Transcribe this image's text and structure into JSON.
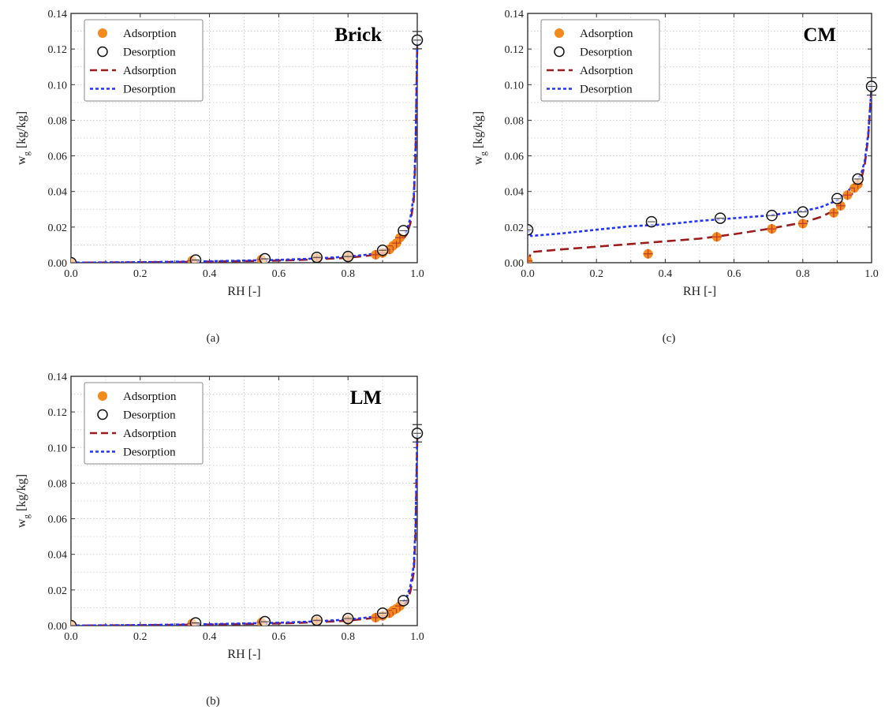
{
  "colors": {
    "adsorption_marker": "#f28a1e",
    "adsorption_marker_cross": "#c0392b",
    "adsorption_curve": "#9b1c1c",
    "desorption_curve": "#2233ff",
    "desorption_marker_edge": "#111111",
    "grid": "#c8c8c8",
    "axis": "#333333"
  },
  "chart_data": [
    {
      "type": "scatter",
      "panel_label": "(a)",
      "material": "Brick",
      "xlabel": "RH [-]",
      "ylabel_main": "w",
      "ylabel_sub": "g",
      "ylabel_rest": " [kg/kg]",
      "xlim": [
        0,
        1.0
      ],
      "ylim": [
        0,
        0.14
      ],
      "xticks": [
        "0.0",
        "0.2",
        "0.4",
        "0.6",
        "0.8",
        "1.0"
      ],
      "yticks": [
        "0.00",
        "0.02",
        "0.04",
        "0.06",
        "0.08",
        "0.10",
        "0.12",
        "0.14"
      ],
      "grid": true,
      "legend_position": "top-left",
      "legend": [
        "Adsorption",
        "Desorption",
        "Adsorption",
        "Desorption"
      ],
      "series": [
        {
          "name": "Adsorption",
          "kind": "points",
          "x": [
            0.0,
            0.35,
            0.55,
            0.71,
            0.8,
            0.88,
            0.9,
            0.92,
            0.93,
            0.94,
            0.95
          ],
          "y": [
            0.0,
            0.0012,
            0.0018,
            0.0025,
            0.0032,
            0.0045,
            0.0055,
            0.0075,
            0.0095,
            0.011,
            0.014
          ]
        },
        {
          "name": "Desorption",
          "kind": "points",
          "x": [
            0.0,
            0.36,
            0.56,
            0.71,
            0.8,
            0.9,
            0.96,
            1.0
          ],
          "y": [
            0.0,
            0.0015,
            0.0022,
            0.003,
            0.0035,
            0.007,
            0.018,
            0.125
          ]
        },
        {
          "name": "Adsorption",
          "kind": "curve",
          "x": [
            0.0,
            0.2,
            0.4,
            0.6,
            0.7,
            0.8,
            0.86,
            0.9,
            0.93,
            0.95,
            0.97,
            0.98,
            0.99,
            0.995,
            1.0
          ],
          "y": [
            0.0,
            0.0002,
            0.0006,
            0.0012,
            0.0018,
            0.0028,
            0.004,
            0.0055,
            0.008,
            0.011,
            0.016,
            0.022,
            0.035,
            0.06,
            0.122
          ]
        },
        {
          "name": "Desorption",
          "kind": "curve",
          "x": [
            0.0,
            0.2,
            0.4,
            0.6,
            0.7,
            0.8,
            0.86,
            0.9,
            0.93,
            0.95,
            0.97,
            0.98,
            0.99,
            0.995,
            1.0
          ],
          "y": [
            0.0,
            0.0003,
            0.0008,
            0.0016,
            0.0023,
            0.0034,
            0.0046,
            0.0062,
            0.009,
            0.012,
            0.018,
            0.025,
            0.038,
            0.065,
            0.125
          ]
        }
      ]
    },
    {
      "type": "scatter",
      "panel_label": "(c)",
      "material": "CM",
      "xlabel": "RH [-]",
      "ylabel_main": "w",
      "ylabel_sub": "g",
      "ylabel_rest": " [kg/kg]",
      "xlim": [
        0,
        1.0
      ],
      "ylim": [
        0,
        0.14
      ],
      "xticks": [
        "0.0",
        "0.2",
        "0.4",
        "0.6",
        "0.8",
        "1.0"
      ],
      "yticks": [
        "0.00",
        "0.02",
        "0.04",
        "0.06",
        "0.08",
        "0.10",
        "0.12",
        "0.14"
      ],
      "grid": true,
      "legend_position": "top-left",
      "legend": [
        "Adsorption",
        "Desorption",
        "Adsorption",
        "Desorption"
      ],
      "series": [
        {
          "name": "Adsorption",
          "kind": "points",
          "x": [
            0.0,
            0.35,
            0.55,
            0.71,
            0.8,
            0.89,
            0.91,
            0.93,
            0.95,
            0.96
          ],
          "y": [
            0.001,
            0.005,
            0.0145,
            0.019,
            0.022,
            0.028,
            0.032,
            0.038,
            0.042,
            0.044
          ]
        },
        {
          "name": "Desorption",
          "kind": "points",
          "x": [
            0.0,
            0.36,
            0.56,
            0.71,
            0.8,
            0.9,
            0.96,
            1.0
          ],
          "y": [
            0.0185,
            0.023,
            0.025,
            0.0265,
            0.0285,
            0.036,
            0.047,
            0.099
          ]
        },
        {
          "name": "Adsorption",
          "kind": "curve",
          "x": [
            0.0,
            0.01,
            0.1,
            0.2,
            0.3,
            0.4,
            0.5,
            0.6,
            0.7,
            0.8,
            0.85,
            0.9,
            0.93,
            0.95,
            0.97,
            0.98,
            0.99,
            1.0
          ],
          "y": [
            0.0,
            0.006,
            0.0075,
            0.009,
            0.0105,
            0.012,
            0.0135,
            0.016,
            0.019,
            0.0225,
            0.0255,
            0.03,
            0.036,
            0.04,
            0.047,
            0.055,
            0.07,
            0.099
          ]
        },
        {
          "name": "Desorption",
          "kind": "curve",
          "x": [
            0.0,
            0.01,
            0.1,
            0.2,
            0.3,
            0.4,
            0.5,
            0.6,
            0.7,
            0.8,
            0.85,
            0.9,
            0.93,
            0.95,
            0.97,
            0.98,
            0.99,
            1.0
          ],
          "y": [
            0.0185,
            0.015,
            0.0165,
            0.0185,
            0.0205,
            0.0215,
            0.0235,
            0.025,
            0.0265,
            0.029,
            0.031,
            0.035,
            0.04,
            0.044,
            0.05,
            0.057,
            0.072,
            0.099
          ]
        }
      ]
    },
    {
      "type": "scatter",
      "panel_label": "(b)",
      "material": "LM",
      "xlabel": "RH [-]",
      "ylabel_main": "w",
      "ylabel_sub": "g",
      "ylabel_rest": " [kg/kg]",
      "xlim": [
        0,
        1.0
      ],
      "ylim": [
        0,
        0.14
      ],
      "xticks": [
        "0.0",
        "0.2",
        "0.4",
        "0.6",
        "0.8",
        "1.0"
      ],
      "yticks": [
        "0.00",
        "0.02",
        "0.04",
        "0.06",
        "0.08",
        "0.10",
        "0.12",
        "0.14"
      ],
      "grid": true,
      "legend_position": "top-left",
      "legend": [
        "Adsorption",
        "Desorption",
        "Adsorption",
        "Desorption"
      ],
      "series": [
        {
          "name": "Adsorption",
          "kind": "points",
          "x": [
            0.0,
            0.35,
            0.55,
            0.71,
            0.8,
            0.88,
            0.9,
            0.92,
            0.93,
            0.94,
            0.95
          ],
          "y": [
            0.0,
            0.0012,
            0.0018,
            0.0025,
            0.0032,
            0.0045,
            0.0055,
            0.007,
            0.0085,
            0.0095,
            0.011
          ]
        },
        {
          "name": "Desorption",
          "kind": "points",
          "x": [
            0.0,
            0.36,
            0.56,
            0.71,
            0.8,
            0.9,
            0.96,
            1.0
          ],
          "y": [
            0.0,
            0.0015,
            0.0022,
            0.003,
            0.004,
            0.007,
            0.014,
            0.108
          ]
        },
        {
          "name": "Adsorption",
          "kind": "curve",
          "x": [
            0.0,
            0.2,
            0.4,
            0.6,
            0.7,
            0.8,
            0.86,
            0.9,
            0.93,
            0.95,
            0.97,
            0.98,
            0.99,
            0.995,
            1.0
          ],
          "y": [
            0.0,
            0.0002,
            0.0006,
            0.0012,
            0.0018,
            0.0028,
            0.004,
            0.0052,
            0.0072,
            0.0095,
            0.0135,
            0.019,
            0.03,
            0.05,
            0.105
          ]
        },
        {
          "name": "Desorption",
          "kind": "curve",
          "x": [
            0.0,
            0.2,
            0.4,
            0.6,
            0.7,
            0.8,
            0.86,
            0.9,
            0.93,
            0.95,
            0.97,
            0.98,
            0.99,
            0.995,
            1.0
          ],
          "y": [
            0.0,
            0.0003,
            0.0008,
            0.0016,
            0.0023,
            0.0034,
            0.0046,
            0.006,
            0.0082,
            0.011,
            0.016,
            0.022,
            0.034,
            0.056,
            0.108
          ]
        }
      ]
    }
  ]
}
